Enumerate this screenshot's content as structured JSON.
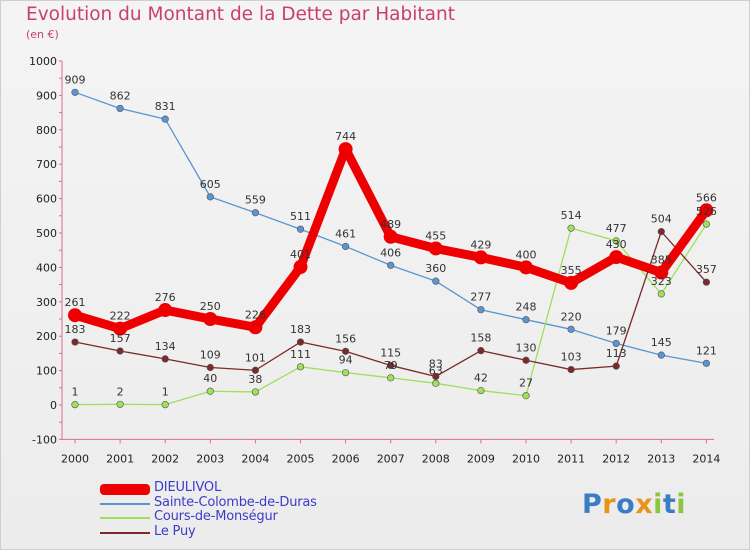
{
  "chart_data": {
    "type": "line",
    "title": "Evolution du Montant de la Dette par Habitant",
    "subtitle": "(en €)",
    "x": [
      "2000",
      "2001",
      "2002",
      "2003",
      "2004",
      "2005",
      "2006",
      "2007",
      "2008",
      "2009",
      "2010",
      "2011",
      "2012",
      "2013",
      "2014"
    ],
    "yticks": [
      "1000",
      "900",
      "800",
      "700",
      "600",
      "500",
      "400",
      "300",
      "200",
      "100",
      "0",
      "-100"
    ],
    "ylim": [
      -100,
      1000
    ],
    "grid": false,
    "legend_position": "bottom-left",
    "series": [
      {
        "name": "DIEULIVOL",
        "color": "#ee0000",
        "values": [
          261,
          222,
          276,
          250,
          226,
          401,
          744,
          489,
          455,
          429,
          400,
          355,
          430,
          385,
          566
        ],
        "labels": [
          "261",
          "222",
          "276",
          "250",
          "226",
          "401",
          "744",
          "489",
          "455",
          "429",
          "400",
          "355",
          "430",
          "385",
          "566"
        ]
      },
      {
        "name": "Sainte-Colombe-de-Duras",
        "color": "#5b95cf",
        "values": [
          909,
          862,
          831,
          605,
          559,
          511,
          461,
          406,
          360,
          277,
          248,
          220,
          179,
          145,
          121
        ],
        "labels": [
          "909",
          "862",
          "831",
          "605",
          "559",
          "511",
          "461",
          "406",
          "360",
          "277",
          "248",
          "220",
          "179",
          "145",
          "121"
        ]
      },
      {
        "name": "Cours-de-Monségur",
        "color": "#9ee05a",
        "values": [
          1,
          2,
          1,
          40,
          38,
          111,
          94,
          79,
          63,
          42,
          27,
          514,
          477,
          323,
          526
        ],
        "labels": [
          "1",
          "2",
          "1",
          "40",
          "38",
          "111",
          "94",
          "79",
          "63",
          "42",
          "27",
          "514",
          "477",
          "323",
          "526"
        ]
      },
      {
        "name": "Le Puy",
        "color": "#7a2a2a",
        "values": [
          183,
          157,
          134,
          109,
          101,
          183,
          156,
          115,
          83,
          158,
          130,
          103,
          113,
          504,
          357
        ],
        "labels": [
          "183",
          "157",
          "134",
          "109",
          "101",
          "183",
          "156",
          "115",
          "83",
          "158",
          "130",
          "103",
          "113",
          "504",
          "357"
        ]
      }
    ]
  },
  "logo": {
    "text": "Proxiti",
    "letters": [
      "P",
      "r",
      "o",
      "x",
      "i",
      "t",
      "i"
    ],
    "colors": [
      "#3b7dc4",
      "#e8941a",
      "#3b7dc4",
      "#e8941a",
      "#8cc63f",
      "#3b7dc4",
      "#8cc63f"
    ]
  }
}
